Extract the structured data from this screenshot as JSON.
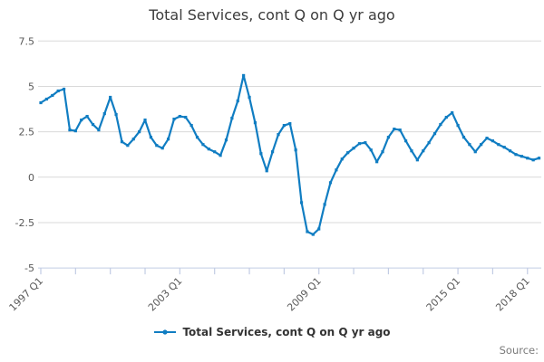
{
  "title": "Total Services, cont Q on Q yr ago",
  "legend": {
    "label": "Total Services, cont Q on Q yr ago"
  },
  "source_label": "Source:",
  "colors": {
    "line": "#107DC2",
    "grid": "#D9D9D9",
    "axis": "#C2CCE4",
    "tick_label": "#595959",
    "title_text": "#3C3C3C",
    "legend_text": "#333333",
    "source_text": "#7A7A7A"
  },
  "chart_data": {
    "type": "line",
    "title": "Total Services, cont Q on Q yr ago",
    "series_name": "Total Services, cont Q on Q yr ago",
    "x_start": "1997 Q1",
    "x_end": "2018 Q3",
    "x_frequency": "quarterly",
    "x_tick_labels": [
      {
        "label": "1997 Q1",
        "q": 0
      },
      {
        "label": "2003 Q1",
        "q": 24
      },
      {
        "label": "2009 Q1",
        "q": 48
      },
      {
        "label": "2015 Q1",
        "q": 72
      },
      {
        "label": "2018 Q1",
        "q": 84
      }
    ],
    "minor_tick_every_quarters": 6,
    "y_ticks": [
      7.5,
      5,
      2.5,
      0,
      -2.5,
      -5
    ],
    "ylim": [
      -5,
      7.5
    ],
    "grid": "horizontal",
    "legend_position": "bottom",
    "marker": "square",
    "values": [
      4.1,
      4.3,
      4.5,
      4.75,
      4.85,
      2.6,
      2.55,
      3.15,
      3.35,
      2.9,
      2.6,
      3.5,
      4.4,
      3.45,
      1.95,
      1.75,
      2.1,
      2.5,
      3.15,
      2.2,
      1.75,
      1.6,
      2.1,
      3.2,
      3.35,
      3.3,
      2.85,
      2.2,
      1.8,
      1.55,
      1.4,
      1.2,
      2.05,
      3.25,
      4.2,
      5.6,
      4.4,
      3.0,
      1.3,
      0.35,
      1.4,
      2.35,
      2.85,
      2.95,
      1.5,
      -1.4,
      -3.0,
      -3.15,
      -2.85,
      -1.5,
      -0.3,
      0.4,
      1.0,
      1.35,
      1.6,
      1.85,
      1.9,
      1.5,
      0.85,
      1.4,
      2.2,
      2.65,
      2.6,
      2.0,
      1.45,
      0.95,
      1.45,
      1.9,
      2.4,
      2.9,
      3.3,
      3.55,
      2.85,
      2.2,
      1.8,
      1.4,
      1.8,
      2.15,
      2.0,
      1.8,
      1.65,
      1.45,
      1.25,
      1.15,
      1.05,
      0.95,
      1.05
    ]
  }
}
